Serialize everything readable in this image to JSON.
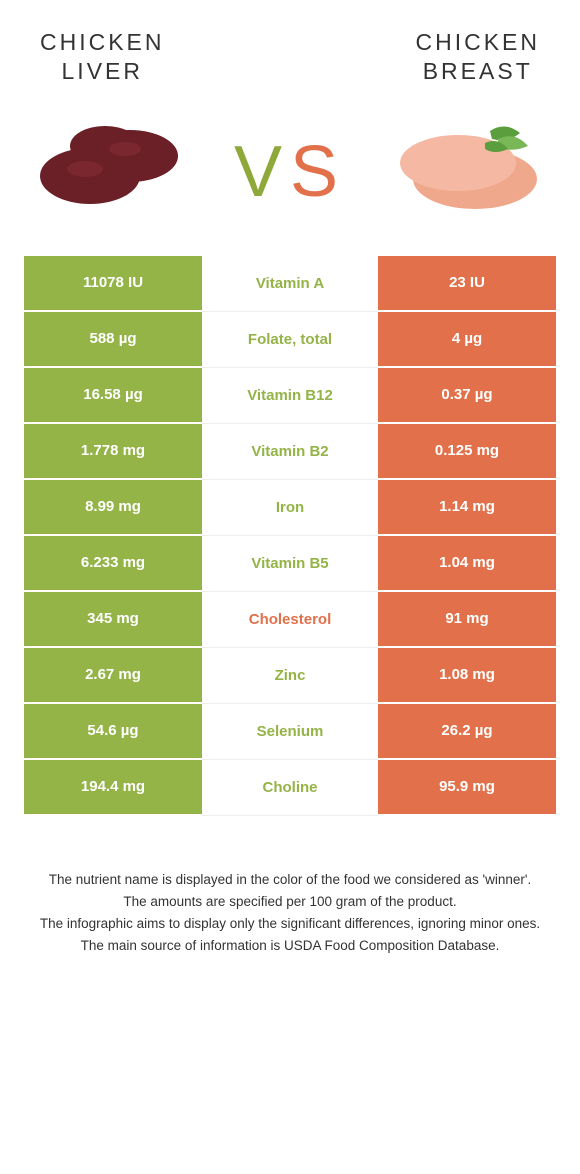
{
  "header": {
    "left_title": "CHICKEN\nLIVER",
    "right_title": "CHICKEN\nBREAST",
    "vs_v": "V",
    "vs_s": "S"
  },
  "colors": {
    "liver": "#94b447",
    "breast": "#e2714b",
    "background": "#ffffff",
    "text": "#333333"
  },
  "table": {
    "left_bg": "#94b447",
    "right_bg": "#e2714b",
    "rows": [
      {
        "left": "11078 IU",
        "label": "Vitamin A",
        "winner": "liver",
        "right": "23 IU"
      },
      {
        "left": "588 µg",
        "label": "Folate, total",
        "winner": "liver",
        "right": "4 µg"
      },
      {
        "left": "16.58 µg",
        "label": "Vitamin B12",
        "winner": "liver",
        "right": "0.37 µg"
      },
      {
        "left": "1.778 mg",
        "label": "Vitamin B2",
        "winner": "liver",
        "right": "0.125 mg"
      },
      {
        "left": "8.99 mg",
        "label": "Iron",
        "winner": "liver",
        "right": "1.14 mg"
      },
      {
        "left": "6.233 mg",
        "label": "Vitamin B5",
        "winner": "liver",
        "right": "1.04 mg"
      },
      {
        "left": "345 mg",
        "label": "Cholesterol",
        "winner": "breast",
        "right": "91 mg"
      },
      {
        "left": "2.67 mg",
        "label": "Zinc",
        "winner": "liver",
        "right": "1.08 mg"
      },
      {
        "left": "54.6 µg",
        "label": "Selenium",
        "winner": "liver",
        "right": "26.2 µg"
      },
      {
        "left": "194.4 mg",
        "label": "Choline",
        "winner": "liver",
        "right": "95.9 mg"
      }
    ]
  },
  "footnotes": [
    "The nutrient name is displayed in the color of the food we considered as 'winner'.",
    "The amounts are specified per 100 gram of the product.",
    "The infographic aims to display only the significant differences, ignoring minor ones.",
    "The main source of information is USDA Food Composition Database."
  ]
}
